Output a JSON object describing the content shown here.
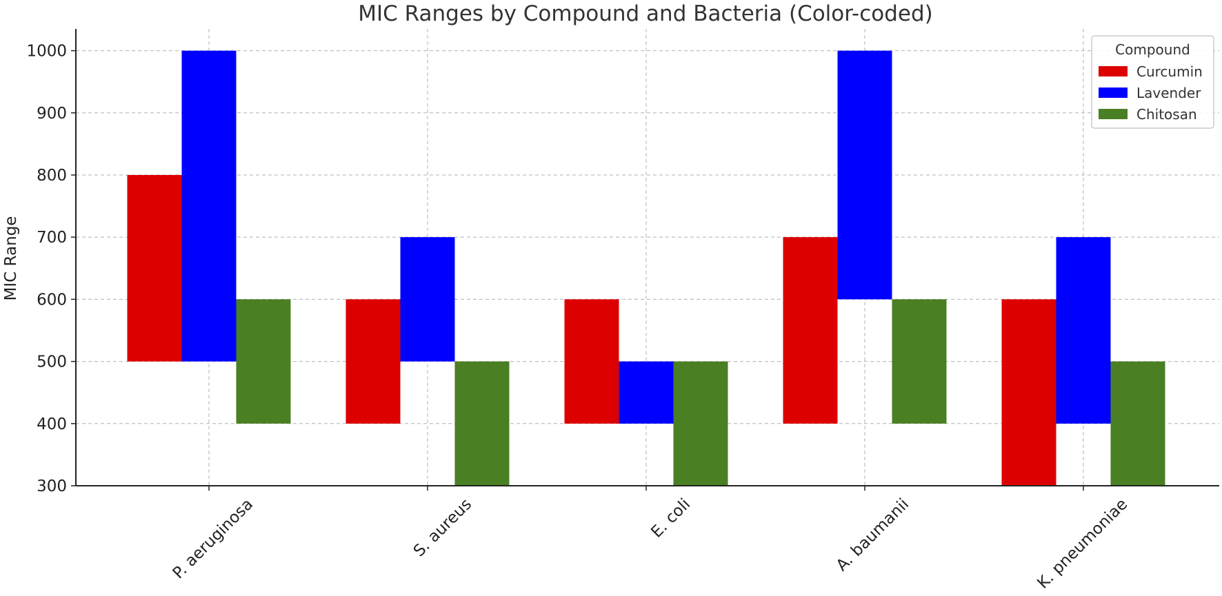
{
  "chart_data": {
    "type": "bar",
    "title": "MIC Ranges by Compound and Bacteria (Color-coded)",
    "xlabel": "",
    "ylabel": "MIC Range",
    "ylim": [
      300,
      1035
    ],
    "yticks": [
      300,
      400,
      500,
      600,
      700,
      800,
      900,
      1000
    ],
    "grid": true,
    "legend": {
      "title": "Compound",
      "position": "top-right"
    },
    "categories": [
      "P. aeruginosa",
      "S. aureus",
      "E. coli",
      "A. baumanii",
      "K. pneumoniae"
    ],
    "series": [
      {
        "name": "Curcumin",
        "color": "#dd0000",
        "ranges": [
          [
            500,
            800
          ],
          [
            400,
            600
          ],
          [
            400,
            600
          ],
          [
            400,
            700
          ],
          [
            300,
            600
          ]
        ]
      },
      {
        "name": "Lavender",
        "color": "#0000ff",
        "ranges": [
          [
            500,
            1000
          ],
          [
            500,
            700
          ],
          [
            400,
            500
          ],
          [
            600,
            1000
          ],
          [
            400,
            700
          ]
        ]
      },
      {
        "name": "Chitosan",
        "color": "#4a7f23",
        "ranges": [
          [
            400,
            600
          ],
          [
            300,
            500
          ],
          [
            300,
            500
          ],
          [
            400,
            600
          ],
          [
            300,
            500
          ]
        ]
      }
    ]
  }
}
